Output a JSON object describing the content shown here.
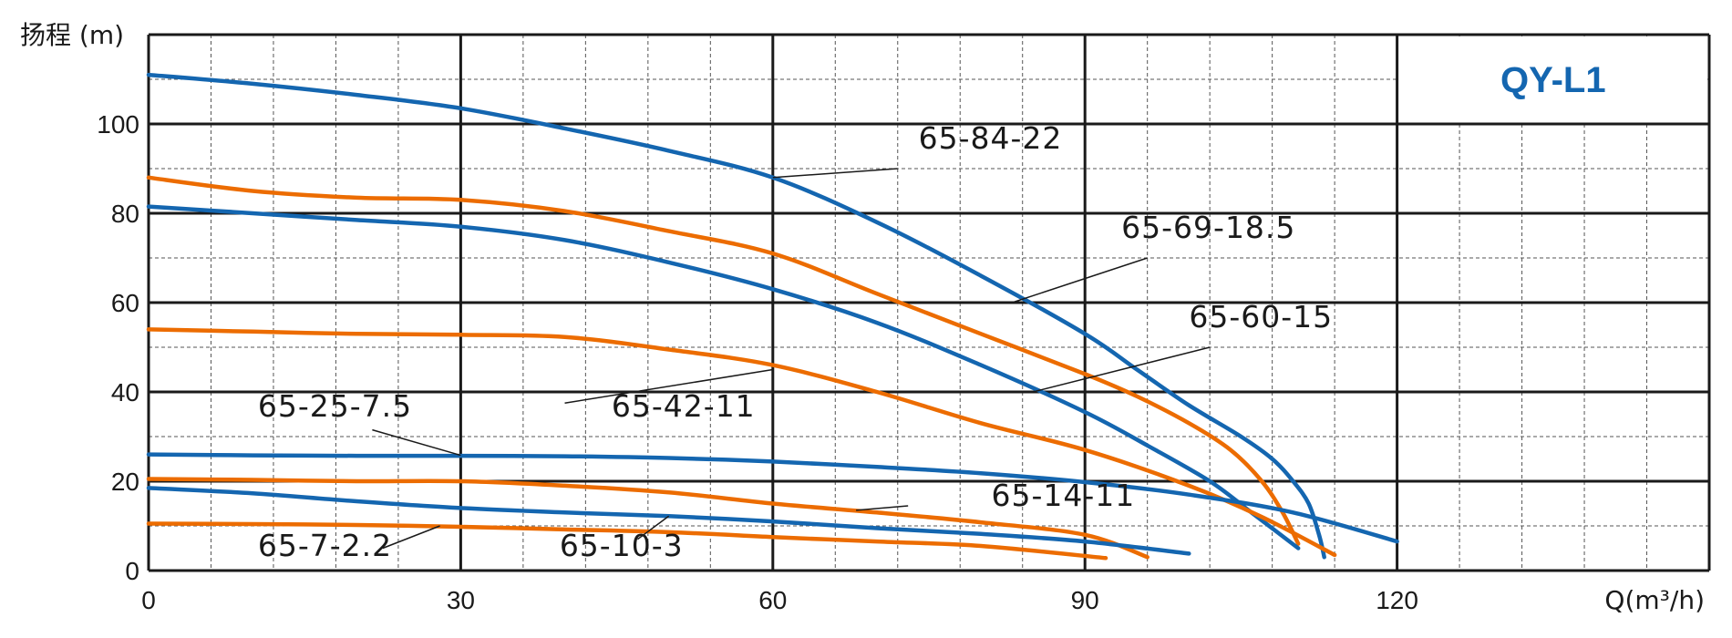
{
  "chart_data": {
    "type": "line",
    "title": "QY-L1",
    "xlabel": "Q(m³/h)",
    "ylabel": "扬程 (m)",
    "xlim": [
      0,
      150
    ],
    "ylim": [
      0,
      120
    ],
    "x_ticks": [
      0,
      30,
      60,
      90,
      120
    ],
    "y_ticks": [
      0,
      20,
      40,
      60,
      80,
      100
    ],
    "grid": true,
    "colors": {
      "blue": "#1466b0",
      "orange": "#ec6c00",
      "grid": "#1a1a1a",
      "title": "#1466b0"
    },
    "series": [
      {
        "name": "65-84-22",
        "color": "blue",
        "points": [
          [
            0,
            111
          ],
          [
            10,
            109
          ],
          [
            20,
            106.5
          ],
          [
            30,
            103.5
          ],
          [
            40,
            99
          ],
          [
            50,
            94
          ],
          [
            60,
            88
          ],
          [
            70,
            78
          ],
          [
            80,
            66
          ],
          [
            90,
            53
          ],
          [
            95,
            45
          ],
          [
            100,
            37
          ],
          [
            105,
            30
          ],
          [
            108,
            25
          ],
          [
            110,
            20
          ],
          [
            111.5,
            15
          ],
          [
            112.5,
            8
          ],
          [
            113,
            3
          ]
        ]
      },
      {
        "name": "65-69-18.5",
        "color": "orange",
        "points": [
          [
            0,
            88
          ],
          [
            10,
            85
          ],
          [
            20,
            83.5
          ],
          [
            30,
            83
          ],
          [
            40,
            80.5
          ],
          [
            50,
            76
          ],
          [
            60,
            71
          ],
          [
            70,
            62
          ],
          [
            80,
            53
          ],
          [
            90,
            44
          ],
          [
            95,
            39
          ],
          [
            100,
            33
          ],
          [
            104,
            27
          ],
          [
            107,
            20
          ],
          [
            109,
            13
          ],
          [
            110.5,
            6
          ]
        ]
      },
      {
        "name": "65-60-15",
        "color": "blue",
        "points": [
          [
            0,
            81.5
          ],
          [
            10,
            80
          ],
          [
            20,
            78.5
          ],
          [
            30,
            77
          ],
          [
            40,
            74
          ],
          [
            50,
            69
          ],
          [
            60,
            63
          ],
          [
            70,
            55.5
          ],
          [
            80,
            46
          ],
          [
            90,
            35.5
          ],
          [
            96,
            28
          ],
          [
            102,
            20
          ],
          [
            106,
            13
          ],
          [
            110.5,
            5
          ]
        ]
      },
      {
        "name": "65-42-11",
        "color": "orange",
        "points": [
          [
            0,
            54
          ],
          [
            10,
            53.5
          ],
          [
            20,
            53
          ],
          [
            30,
            52.8
          ],
          [
            40,
            52.3
          ],
          [
            50,
            49.5
          ],
          [
            60,
            46
          ],
          [
            70,
            40
          ],
          [
            80,
            33
          ],
          [
            90,
            27
          ],
          [
            100,
            19
          ],
          [
            107,
            12
          ],
          [
            114,
            3.5
          ]
        ]
      },
      {
        "name": "65-25-7.5",
        "color": "blue",
        "points": [
          [
            0,
            26
          ],
          [
            10,
            25.8
          ],
          [
            20,
            25.7
          ],
          [
            30,
            25.7
          ],
          [
            40,
            25.6
          ],
          [
            50,
            25.2
          ],
          [
            60,
            24.4
          ],
          [
            70,
            23.2
          ],
          [
            80,
            21.8
          ],
          [
            90,
            19.8
          ],
          [
            100,
            17
          ],
          [
            110,
            13
          ],
          [
            120,
            6.5
          ]
        ]
      },
      {
        "name": "65-14-11",
        "color": "orange",
        "points": [
          [
            0,
            20.5
          ],
          [
            10,
            20.3
          ],
          [
            20,
            20
          ],
          [
            30,
            20
          ],
          [
            40,
            19
          ],
          [
            50,
            17.5
          ],
          [
            60,
            15
          ],
          [
            70,
            13
          ],
          [
            80,
            10.8
          ],
          [
            90,
            8
          ],
          [
            96,
            3
          ]
        ]
      },
      {
        "name": "65-10-3",
        "color": "blue",
        "points": [
          [
            0,
            18.5
          ],
          [
            10,
            17.3
          ],
          [
            20,
            15.5
          ],
          [
            30,
            14
          ],
          [
            40,
            13
          ],
          [
            50,
            12.2
          ],
          [
            60,
            11
          ],
          [
            70,
            9.5
          ],
          [
            80,
            8.2
          ],
          [
            90,
            6.5
          ],
          [
            100,
            3.8
          ]
        ]
      },
      {
        "name": "65-7-2.2",
        "color": "orange",
        "points": [
          [
            0,
            10.5
          ],
          [
            10,
            10.4
          ],
          [
            20,
            10.2
          ],
          [
            30,
            9.8
          ],
          [
            40,
            9.2
          ],
          [
            50,
            8.6
          ],
          [
            60,
            7.5
          ],
          [
            70,
            6.5
          ],
          [
            80,
            5.5
          ],
          [
            92,
            2.8
          ]
        ]
      }
    ],
    "annotations": [
      {
        "text": "65-84-22",
        "at": [
          60,
          88
        ],
        "label_at": [
          74,
          94.5
        ],
        "line_end": [
          72,
          90
        ]
      },
      {
        "text": "65-69-18.5",
        "at": [
          83,
          60
        ],
        "label_at": [
          93.5,
          74.5
        ],
        "line_end": [
          96,
          70
        ]
      },
      {
        "text": "65-60-15",
        "at": [
          85,
          40
        ],
        "label_at": [
          100,
          54.5
        ],
        "line_end": [
          102,
          50
        ]
      },
      {
        "text": "65-42-11",
        "at": [
          60,
          45
        ],
        "label_at": [
          44.5,
          34.5
        ],
        "line_end": [
          40,
          37.5
        ]
      },
      {
        "text": "65-25-7.5",
        "at": [
          30,
          25.8
        ],
        "label_at": [
          10.5,
          34.5
        ],
        "line_end": [
          21.5,
          31.5
        ]
      },
      {
        "text": "65-14-11",
        "at": [
          68,
          13.5
        ],
        "label_at": [
          81,
          14.5
        ],
        "line_end": [
          73,
          14.5
        ]
      },
      {
        "text": "65-10-3",
        "at": [
          50,
          12.2
        ],
        "label_at": [
          39.5,
          3.3
        ],
        "line_end": [
          47,
          7
        ]
      },
      {
        "text": "65-7-2.2",
        "at": [
          28,
          10
        ],
        "label_at": [
          10.5,
          3.3
        ],
        "line_end": [
          22.5,
          5
        ]
      }
    ]
  }
}
